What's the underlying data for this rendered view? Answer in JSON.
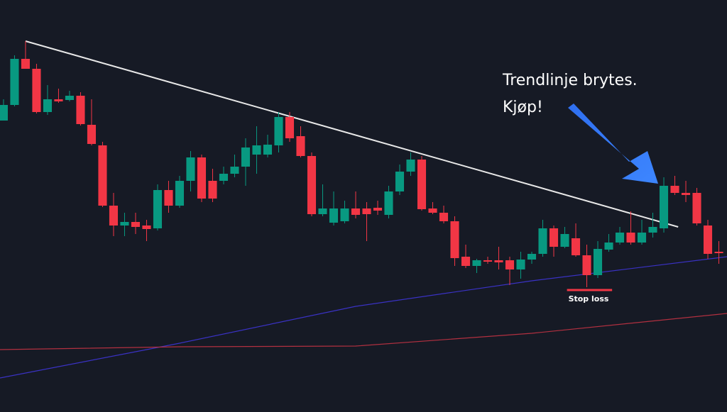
{
  "chart_data": {
    "type": "candlestick",
    "annotations": [
      "Trendlinje brytes.",
      "Kjøp!",
      "Stop loss"
    ],
    "xlim": [
      -0.32,
      65.74
    ],
    "ylim": [
      0,
      581
    ],
    "up_color": "#089981",
    "down_color": "#f23645",
    "x": [
      0,
      1,
      2,
      3,
      4,
      5,
      6,
      7,
      8,
      9,
      10,
      11,
      12,
      13,
      14,
      15,
      16,
      17,
      18,
      19,
      20,
      21,
      22,
      23,
      24,
      25,
      26,
      27,
      28,
      29,
      30,
      31,
      32,
      33,
      34,
      35,
      36,
      37,
      38,
      39,
      40,
      41,
      42,
      43,
      44,
      45,
      46,
      47,
      48,
      49,
      50,
      51,
      52,
      53,
      54,
      55,
      56,
      57,
      58,
      59,
      60,
      61,
      62,
      63,
      64,
      65
    ],
    "open": [
      411,
      433,
      498,
      484,
      423,
      441,
      440,
      446,
      405,
      376,
      291,
      263,
      268,
      263,
      259,
      313,
      291,
      326,
      359,
      326,
      326,
      336,
      346,
      363,
      363,
      376,
      416,
      389,
      361,
      279,
      267,
      269,
      287,
      287,
      288,
      278,
      311,
      339,
      356,
      287,
      281,
      269,
      219,
      206,
      214,
      214,
      214,
      201,
      215,
      223,
      259,
      233,
      245,
      221,
      193,
      229,
      239,
      253,
      239,
      253,
      259,
      319,
      309,
      309,
      263,
      226
    ],
    "high": [
      441,
      503,
      523,
      491,
      461,
      456,
      453,
      451,
      441,
      381,
      309,
      281,
      281,
      271,
      321,
      326,
      333,
      368,
      363,
      343,
      346,
      363,
      386,
      403,
      391,
      423,
      423,
      403,
      366,
      321,
      311,
      298,
      311,
      296,
      298,
      319,
      349,
      366,
      361,
      296,
      291,
      276,
      236,
      216,
      219,
      233,
      219,
      226,
      226,
      271,
      263,
      261,
      266,
      236,
      241,
      251,
      261,
      283,
      271,
      281,
      331,
      333,
      326,
      316,
      271,
      241
    ],
    "low": [
      411,
      431,
      484,
      421,
      419,
      436,
      438,
      404,
      376,
      289,
      248,
      248,
      251,
      241,
      256,
      281,
      288,
      311,
      296,
      296,
      321,
      331,
      319,
      336,
      359,
      366,
      381,
      359,
      276,
      276,
      263,
      266,
      273,
      241,
      278,
      273,
      306,
      333,
      284,
      279,
      266,
      206,
      203,
      196,
      209,
      201,
      179,
      188,
      209,
      219,
      219,
      231,
      219,
      176,
      189,
      226,
      236,
      236,
      236,
      246,
      253,
      306,
      296,
      263,
      216,
      209
    ],
    "close": [
      433,
      498,
      484,
      423,
      441,
      438,
      446,
      406,
      378,
      291,
      263,
      268,
      261,
      258,
      313,
      291,
      326,
      359,
      301,
      301,
      336,
      346,
      373,
      376,
      377,
      416,
      386,
      361,
      279,
      287,
      287,
      287,
      278,
      279,
      284,
      311,
      339,
      356,
      286,
      281,
      269,
      217,
      206,
      214,
      212,
      211,
      201,
      215,
      223,
      259,
      233,
      251,
      221,
      193,
      230,
      239,
      253,
      239,
      253,
      261,
      319,
      309,
      306,
      266,
      223,
      224
    ],
    "trendline": {
      "color": "#e8e8e8",
      "x": [
        2.0,
        61.3
      ],
      "values": [
        523,
        261
      ]
    },
    "lines": [
      {
        "color": "#3a32c4",
        "x": [
          -0.32,
          16,
          32,
          48,
          65.74
        ],
        "values": [
          48,
          97,
          149,
          185,
          219
        ]
      },
      {
        "color": "#b23040",
        "x": [
          -0.32,
          16,
          32,
          48,
          65.74
        ],
        "values": [
          88,
          92,
          93,
          111,
          139
        ]
      }
    ],
    "stop_loss": {
      "color": "#f23645",
      "x": [
        51.2,
        55.3
      ],
      "value": 172
    }
  }
}
